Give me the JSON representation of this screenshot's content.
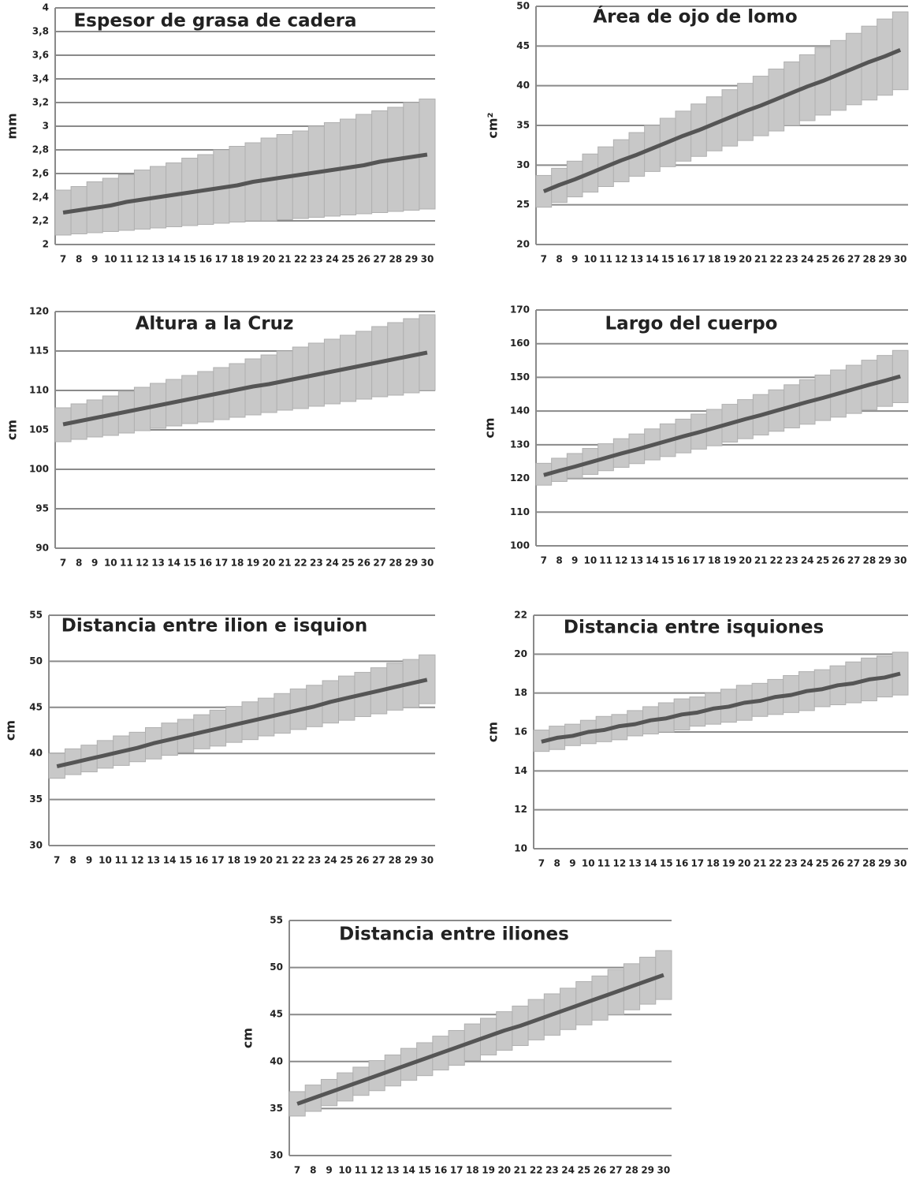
{
  "chart_data": [
    {
      "type": "band-line",
      "title": "Espesor de grasa de cadera",
      "y_label": "mm",
      "color": "#555555",
      "band_color": "#c8c8c8",
      "categories": [
        7,
        8,
        9,
        10,
        11,
        12,
        13,
        14,
        15,
        16,
        17,
        18,
        19,
        20,
        21,
        22,
        23,
        24,
        25,
        26,
        27,
        28,
        29,
        30
      ],
      "values": [
        2.27,
        2.29,
        2.31,
        2.33,
        2.36,
        2.38,
        2.4,
        2.42,
        2.44,
        2.46,
        2.48,
        2.5,
        2.53,
        2.55,
        2.57,
        2.59,
        2.61,
        2.63,
        2.65,
        2.67,
        2.7,
        2.72,
        2.74,
        2.76
      ],
      "lower": [
        2.08,
        2.09,
        2.1,
        2.11,
        2.12,
        2.13,
        2.14,
        2.15,
        2.16,
        2.17,
        2.18,
        2.19,
        2.2,
        2.2,
        2.21,
        2.22,
        2.23,
        2.24,
        2.25,
        2.26,
        2.27,
        2.28,
        2.29,
        2.3
      ],
      "upper": [
        2.46,
        2.49,
        2.53,
        2.56,
        2.59,
        2.63,
        2.66,
        2.69,
        2.73,
        2.76,
        2.8,
        2.83,
        2.86,
        2.9,
        2.93,
        2.96,
        3.0,
        3.03,
        3.06,
        3.1,
        3.13,
        3.16,
        3.2,
        3.23
      ],
      "ylim": [
        2,
        4
      ],
      "yticks": [
        2,
        {
          "value": 2.2,
          "label": "2,2"
        },
        {
          "value": 2.4,
          "label": "2,4"
        },
        {
          "value": 2.6,
          "label": "2,6"
        },
        {
          "value": 2.8,
          "label": "2,8"
        },
        3,
        {
          "value": 3.2,
          "label": "3,2"
        },
        {
          "value": 3.4,
          "label": "3,4"
        },
        {
          "value": 3.6,
          "label": "3,6"
        },
        {
          "value": 3.8,
          "label": "3,8"
        },
        4
      ],
      "grid": true
    },
    {
      "type": "band-line",
      "title": "Área de ojo de lomo",
      "y_label": "cm²",
      "color": "#555555",
      "band_color": "#c8c8c8",
      "categories": [
        7,
        8,
        9,
        10,
        11,
        12,
        13,
        14,
        15,
        16,
        17,
        18,
        19,
        20,
        21,
        22,
        23,
        24,
        25,
        26,
        27,
        28,
        29,
        30
      ],
      "values": [
        26.7,
        27.5,
        28.2,
        29.0,
        29.8,
        30.6,
        31.3,
        32.1,
        32.9,
        33.7,
        34.4,
        35.2,
        36.0,
        36.8,
        37.5,
        38.3,
        39.1,
        39.9,
        40.6,
        41.4,
        42.2,
        43.0,
        43.7,
        44.5
      ],
      "lower": [
        24.7,
        25.3,
        26.0,
        26.6,
        27.3,
        27.9,
        28.6,
        29.2,
        29.8,
        30.5,
        31.1,
        31.8,
        32.4,
        33.1,
        33.7,
        34.3,
        35.0,
        35.6,
        36.3,
        36.9,
        37.6,
        38.2,
        38.8,
        39.5
      ],
      "upper": [
        28.7,
        29.6,
        30.5,
        31.4,
        32.3,
        33.2,
        34.1,
        35.0,
        35.9,
        36.8,
        37.7,
        38.6,
        39.5,
        40.3,
        41.2,
        42.1,
        43.0,
        43.9,
        44.8,
        45.7,
        46.6,
        47.5,
        48.4,
        49.3
      ],
      "ylim": [
        20,
        50
      ],
      "yticks": [
        20,
        25,
        30,
        35,
        40,
        45,
        50
      ],
      "grid": true
    },
    {
      "type": "band-line",
      "title": "Altura a la Cruz",
      "y_label": "cm",
      "color": "#555555",
      "band_color": "#c8c8c8",
      "categories": [
        7,
        8,
        9,
        10,
        11,
        12,
        13,
        14,
        15,
        16,
        17,
        18,
        19,
        20,
        21,
        22,
        23,
        24,
        25,
        26,
        27,
        28,
        29,
        30
      ],
      "values": [
        105.7,
        106.1,
        106.5,
        106.9,
        107.3,
        107.7,
        108.1,
        108.5,
        108.9,
        109.3,
        109.7,
        110.1,
        110.5,
        110.8,
        111.2,
        111.6,
        112.0,
        112.4,
        112.8,
        113.2,
        113.6,
        114.0,
        114.4,
        114.8
      ],
      "lower": [
        103.5,
        103.8,
        104.1,
        104.3,
        104.6,
        104.9,
        105.2,
        105.5,
        105.8,
        106.0,
        106.3,
        106.6,
        106.9,
        107.2,
        107.5,
        107.7,
        108.0,
        108.3,
        108.6,
        108.9,
        109.2,
        109.4,
        109.7,
        110.0
      ],
      "upper": [
        107.8,
        108.3,
        108.8,
        109.3,
        109.9,
        110.4,
        110.9,
        111.4,
        111.9,
        112.4,
        112.9,
        113.4,
        114.0,
        114.5,
        115.0,
        115.5,
        116.0,
        116.5,
        117.0,
        117.5,
        118.1,
        118.6,
        119.1,
        119.6
      ],
      "ylim": [
        90,
        120
      ],
      "yticks": [
        90,
        95,
        100,
        105,
        110,
        115,
        120
      ],
      "grid": true
    },
    {
      "type": "band-line",
      "title": "Largo del cuerpo",
      "y_label": "cm",
      "color": "#555555",
      "band_color": "#c8c8c8",
      "categories": [
        7,
        8,
        9,
        10,
        11,
        12,
        13,
        14,
        15,
        16,
        17,
        18,
        19,
        20,
        21,
        22,
        23,
        24,
        25,
        26,
        27,
        28,
        29,
        30
      ],
      "values": [
        121.0,
        122.3,
        123.5,
        124.8,
        126.1,
        127.4,
        128.6,
        129.9,
        131.2,
        132.5,
        133.7,
        135.0,
        136.3,
        137.6,
        138.8,
        140.1,
        141.4,
        142.7,
        143.9,
        145.2,
        146.5,
        147.8,
        149.0,
        150.3
      ],
      "lower": [
        118.0,
        119.1,
        120.1,
        121.2,
        122.3,
        123.3,
        124.4,
        125.5,
        126.5,
        127.6,
        128.7,
        129.7,
        130.8,
        131.8,
        132.9,
        134.0,
        135.0,
        136.1,
        137.2,
        138.2,
        139.3,
        140.4,
        141.4,
        142.5
      ],
      "upper": [
        124.5,
        126.0,
        127.4,
        128.9,
        130.3,
        131.8,
        133.2,
        134.7,
        136.2,
        137.6,
        139.1,
        140.5,
        142.0,
        143.4,
        144.9,
        146.3,
        147.8,
        149.3,
        150.7,
        152.2,
        153.6,
        155.1,
        156.5,
        158.0
      ],
      "ylim": [
        100,
        170
      ],
      "yticks": [
        100,
        110,
        120,
        130,
        140,
        150,
        160,
        170
      ],
      "grid": true
    },
    {
      "type": "band-line",
      "title": "Distancia entre ilion e isquion",
      "y_label": "cm",
      "color": "#555555",
      "band_color": "#c8c8c8",
      "categories": [
        7,
        8,
        9,
        10,
        11,
        12,
        13,
        14,
        15,
        16,
        17,
        18,
        19,
        20,
        21,
        22,
        23,
        24,
        25,
        26,
        27,
        28,
        29,
        30
      ],
      "values": [
        38.6,
        39.0,
        39.4,
        39.8,
        40.2,
        40.6,
        41.1,
        41.5,
        41.9,
        42.3,
        42.7,
        43.1,
        43.5,
        43.9,
        44.3,
        44.7,
        45.1,
        45.6,
        46.0,
        46.4,
        46.8,
        47.2,
        47.6,
        48.0
      ],
      "lower": [
        37.3,
        37.7,
        38.0,
        38.4,
        38.7,
        39.1,
        39.4,
        39.8,
        40.1,
        40.5,
        40.8,
        41.2,
        41.5,
        41.9,
        42.2,
        42.6,
        42.9,
        43.3,
        43.6,
        44.0,
        44.3,
        44.7,
        45.0,
        45.4
      ],
      "upper": [
        40.0,
        40.5,
        40.9,
        41.4,
        41.9,
        42.3,
        42.8,
        43.3,
        43.7,
        44.2,
        44.7,
        45.1,
        45.6,
        46.0,
        46.5,
        47.0,
        47.4,
        47.9,
        48.4,
        48.8,
        49.3,
        49.8,
        50.2,
        50.7
      ],
      "ylim": [
        30,
        55
      ],
      "yticks": [
        30,
        35,
        40,
        45,
        50,
        55
      ],
      "grid": true
    },
    {
      "type": "band-line",
      "title": "Distancia entre isquiones",
      "y_label": "cm",
      "color": "#555555",
      "band_color": "#c8c8c8",
      "categories": [
        7,
        8,
        9,
        10,
        11,
        12,
        13,
        14,
        15,
        16,
        17,
        18,
        19,
        20,
        21,
        22,
        23,
        24,
        25,
        26,
        27,
        28,
        29,
        30
      ],
      "values": [
        15.5,
        15.7,
        15.8,
        16.0,
        16.1,
        16.3,
        16.4,
        16.6,
        16.7,
        16.9,
        17.0,
        17.2,
        17.3,
        17.5,
        17.6,
        17.8,
        17.9,
        18.1,
        18.2,
        18.4,
        18.5,
        18.7,
        18.8,
        19.0
      ],
      "lower": [
        15.0,
        15.1,
        15.3,
        15.4,
        15.5,
        15.6,
        15.8,
        15.9,
        16.0,
        16.1,
        16.3,
        16.4,
        16.5,
        16.6,
        16.8,
        16.9,
        17.0,
        17.1,
        17.3,
        17.4,
        17.5,
        17.6,
        17.8,
        17.9
      ],
      "upper": [
        16.1,
        16.3,
        16.4,
        16.6,
        16.8,
        16.9,
        17.1,
        17.3,
        17.5,
        17.7,
        17.8,
        18.0,
        18.2,
        18.4,
        18.5,
        18.7,
        18.9,
        19.1,
        19.2,
        19.4,
        19.6,
        19.8,
        19.9,
        20.1
      ],
      "ylim": [
        10,
        22
      ],
      "yticks": [
        10,
        12,
        14,
        16,
        18,
        20,
        22
      ],
      "grid": true
    },
    {
      "type": "band-line",
      "title": "Distancia entre iliones",
      "y_label": "cm",
      "color": "#555555",
      "band_color": "#c8c8c8",
      "categories": [
        7,
        8,
        9,
        10,
        11,
        12,
        13,
        14,
        15,
        16,
        17,
        18,
        19,
        20,
        21,
        22,
        23,
        24,
        25,
        26,
        27,
        28,
        29,
        30
      ],
      "values": [
        35.5,
        36.1,
        36.7,
        37.3,
        37.9,
        38.5,
        39.1,
        39.7,
        40.3,
        40.9,
        41.5,
        42.1,
        42.7,
        43.3,
        43.8,
        44.4,
        45.0,
        45.6,
        46.2,
        46.8,
        47.4,
        48.0,
        48.6,
        49.2
      ],
      "lower": [
        34.2,
        34.7,
        35.3,
        35.8,
        36.4,
        36.9,
        37.4,
        38.0,
        38.5,
        39.1,
        39.6,
        40.1,
        40.7,
        41.2,
        41.7,
        42.3,
        42.8,
        43.4,
        43.9,
        44.4,
        45.0,
        45.5,
        46.1,
        46.6
      ],
      "upper": [
        36.8,
        37.5,
        38.1,
        38.8,
        39.4,
        40.1,
        40.7,
        41.4,
        42.0,
        42.7,
        43.3,
        44.0,
        44.6,
        45.3,
        45.9,
        46.6,
        47.2,
        47.8,
        48.5,
        49.1,
        49.8,
        50.4,
        51.1,
        51.8
      ],
      "ylim": [
        30,
        55
      ],
      "yticks": [
        30,
        35,
        40,
        45,
        50,
        55
      ],
      "grid": true
    }
  ]
}
